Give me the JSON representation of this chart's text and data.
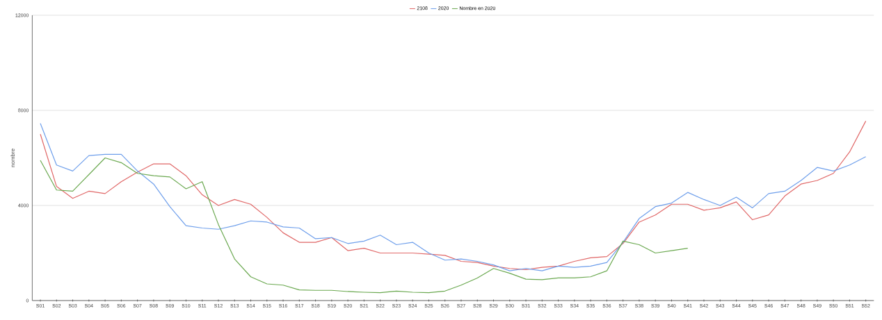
{
  "chart_data": {
    "type": "line",
    "ylabel": "nombre",
    "categories": [
      "S01",
      "S02",
      "S03",
      "S04",
      "S05",
      "S06",
      "S07",
      "S08",
      "S09",
      "S10",
      "S11",
      "S12",
      "S13",
      "S14",
      "S15",
      "S16",
      "S17",
      "S18",
      "S19",
      "S20",
      "S21",
      "S22",
      "S23",
      "S24",
      "S25",
      "S26",
      "S27",
      "S28",
      "S29",
      "S30",
      "S31",
      "S32",
      "S33",
      "S34",
      "S35",
      "S36",
      "S37",
      "S38",
      "S39",
      "S40",
      "S41",
      "S42",
      "S43",
      "S44",
      "S45",
      "S46",
      "S47",
      "S48",
      "S49",
      "S50",
      "S51",
      "S52"
    ],
    "series": [
      {
        "name": "2108",
        "color": "#e06666",
        "values": [
          7000,
          4800,
          4300,
          4600,
          4500,
          5000,
          5400,
          5750,
          5750,
          5250,
          4450,
          4000,
          4250,
          4050,
          3500,
          2850,
          2450,
          2450,
          2650,
          2100,
          2200,
          2000,
          2000,
          2000,
          1950,
          1900,
          1650,
          1600,
          1450,
          1350,
          1300,
          1400,
          1450,
          1650,
          1800,
          1850,
          2400,
          3300,
          3600,
          4050,
          4050,
          3800,
          3900,
          4150,
          3400,
          3600,
          4400,
          4900,
          5050,
          5350,
          6250,
          7550
        ]
      },
      {
        "name": "2020",
        "color": "#6d9eeb",
        "values": [
          7450,
          5700,
          5450,
          6100,
          6150,
          6150,
          5450,
          4900,
          3950,
          3150,
          3050,
          3000,
          3150,
          3350,
          3300,
          3100,
          3050,
          2600,
          2650,
          2400,
          2500,
          2750,
          2350,
          2450,
          2000,
          1700,
          1750,
          1650,
          1500,
          1250,
          1350,
          1250,
          1450,
          1400,
          1450,
          1600,
          2450,
          3450,
          3950,
          4100,
          4550,
          4250,
          4000,
          4350,
          3900,
          4500,
          4600,
          5050,
          5600,
          5450,
          5700,
          6050
        ]
      },
      {
        "name": "Nombre en 2020",
        "color": "#6aa84f",
        "values": [
          5900,
          4650,
          4600,
          5300,
          6000,
          5800,
          5350,
          5250,
          5200,
          4700,
          5000,
          3200,
          1750,
          1000,
          700,
          650,
          450,
          430,
          430,
          380,
          350,
          330,
          400,
          350,
          330,
          400,
          650,
          950,
          1350,
          1150,
          900,
          880,
          950,
          950,
          1000,
          1250,
          2500,
          2350,
          2000,
          2100,
          2200,
          null,
          null,
          null,
          null,
          null,
          null,
          null,
          null,
          null,
          null,
          null
        ]
      }
    ],
    "ylim": [
      0,
      12000
    ],
    "yticks": [
      0,
      4000,
      8000,
      12000
    ],
    "grid": "y",
    "legend": "top",
    "marker": "none",
    "line_style": "solid"
  }
}
